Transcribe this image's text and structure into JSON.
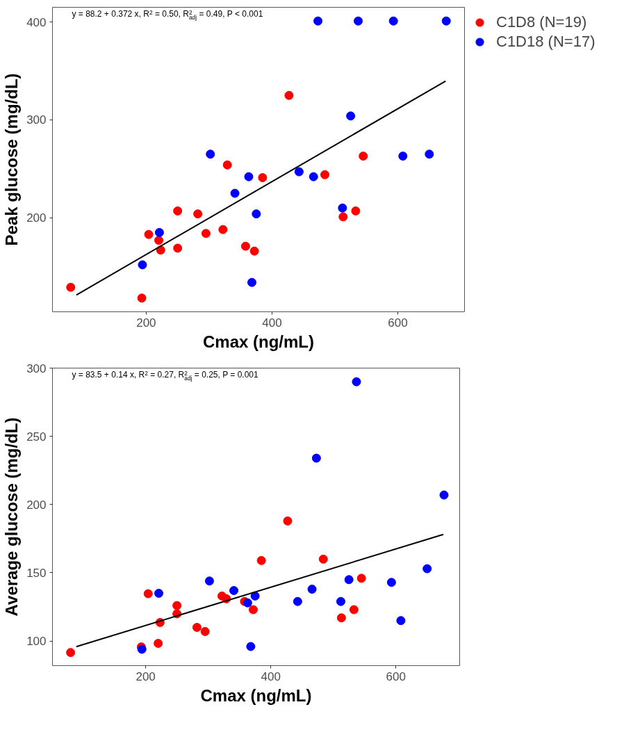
{
  "chart_data": [
    {
      "type": "scatter",
      "xlabel": "Cmax (ng/mL)",
      "ylabel": "Peak glucose (mg/dL)",
      "xlim": [
        51,
        706
      ],
      "ylim": [
        104,
        415
      ],
      "xticks": [
        200,
        400,
        600
      ],
      "yticks": [
        200,
        300,
        400
      ],
      "legend": "top right",
      "annotations": [
        "y = 88.2 + 0.372 x, R$^{2}$ = 0.50, R$^{2}$$_{adj}$ = 0.49, P < 0.001"
      ],
      "series": [
        {
          "name": "C1D8 (N=19)",
          "color": "#ff0000",
          "marker": "circle",
          "x": [
            80,
            193,
            204,
            220,
            223,
            250,
            250,
            282,
            295,
            322,
            329,
            358,
            372,
            385,
            427,
            484,
            513,
            533,
            545
          ],
          "values": [
            129,
            118,
            183,
            177,
            167,
            207,
            169,
            204,
            184,
            188,
            254,
            171,
            166,
            241,
            325,
            244,
            201,
            207,
            263
          ]
        },
        {
          "name": "C1D18 (N=17)",
          "color": "#0000ff",
          "marker": "circle",
          "x": [
            194,
            221,
            302,
            341,
            363,
            375,
            368,
            443,
            466,
            473,
            512,
            525,
            537,
            593,
            608,
            650,
            677
          ],
          "values": [
            152,
            185,
            265,
            225,
            242,
            204,
            134,
            247,
            242,
            401,
            210,
            304,
            401,
            401,
            263,
            265,
            401
          ]
        },
        {
          "type": "line",
          "color": "#000000",
          "x": [
            89,
            676
          ],
          "values": [
            121.2,
            339.7
          ]
        }
      ]
    },
    {
      "type": "scatter",
      "xlabel": "Cmax (ng/mL)",
      "ylabel": "Average glucose (mg/dL)",
      "xlim": [
        51,
        702
      ],
      "ylim": [
        82,
        300
      ],
      "xticks": [
        200,
        400,
        600
      ],
      "yticks": [
        100,
        150,
        200,
        250,
        300
      ],
      "annotations": [
        "y = 83.5 + 0.14 x, R$^{2}$ = 0.27, R$^{2}$$_{adj}$ = 0.25, P = 0.001"
      ],
      "series": [
        {
          "color": "#ff0000",
          "marker": "circle",
          "x": [
            80,
            193,
            204,
            220,
            223,
            250,
            250,
            282,
            295,
            322,
            329,
            358,
            372,
            385,
            427,
            484,
            513,
            533,
            545
          ],
          "values": [
            91.6,
            95.7,
            134.7,
            98.3,
            113.6,
            126,
            120,
            110,
            107,
            133,
            131,
            129,
            123,
            159,
            188,
            160,
            117,
            123,
            146
          ]
        },
        {
          "color": "#0000ff",
          "marker": "circle",
          "x": [
            194,
            221,
            302,
            341,
            363,
            375,
            368,
            443,
            466,
            473,
            512,
            525,
            537,
            593,
            608,
            650,
            677
          ],
          "values": [
            94,
            135,
            144,
            137,
            128,
            133,
            96,
            129,
            138,
            234,
            129,
            145,
            290,
            143,
            115,
            153,
            207
          ]
        },
        {
          "type": "line",
          "color": "#000000",
          "x": [
            89,
            676
          ],
          "values": [
            95.9,
            178.1
          ]
        }
      ]
    }
  ]
}
